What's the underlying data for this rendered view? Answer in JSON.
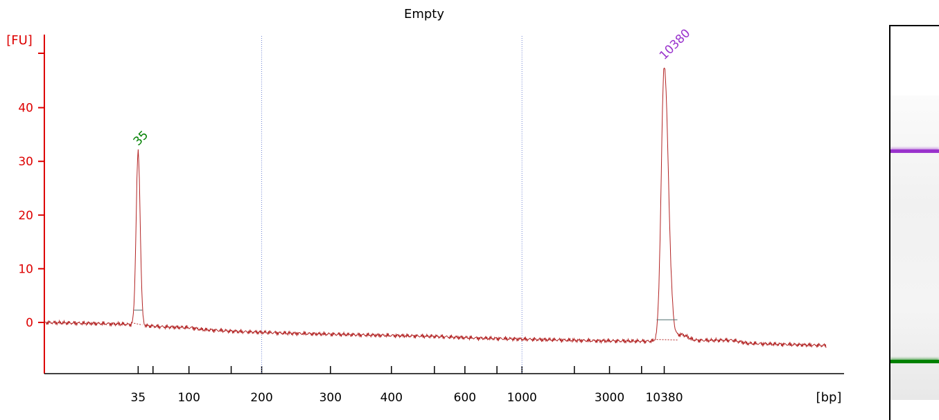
{
  "chart_data": {
    "type": "line",
    "title": "Empty",
    "ylabel": "[FU]",
    "xlabel": "[bp]",
    "ylim": [
      -10,
      50
    ],
    "y_ticks": [
      0,
      10,
      20,
      30,
      40
    ],
    "x_tick_labels": [
      "35",
      "100",
      "200",
      "300",
      "400",
      "600",
      "1000",
      "3000",
      "10380"
    ],
    "x_dotted_lines": [
      "200",
      "1000"
    ],
    "baseline": [
      [
        0,
        0.0
      ],
      [
        10,
        -0.3
      ],
      [
        15,
        -0.8
      ],
      [
        19,
        -1.0
      ],
      [
        20,
        -1.3
      ],
      [
        25,
        -1.7
      ],
      [
        31,
        -2.0
      ],
      [
        40,
        -2.3
      ],
      [
        50,
        -2.6
      ],
      [
        55,
        -2.9
      ],
      [
        61,
        -3.1
      ],
      [
        70,
        -3.4
      ],
      [
        77,
        -3.5
      ],
      [
        79,
        -3.4
      ],
      [
        88,
        -3.3
      ],
      [
        90,
        -3.9
      ],
      [
        100,
        -4.3
      ]
    ],
    "peaks": [
      {
        "label": "35",
        "color": "#008000",
        "x": 12.0,
        "height": 31.8
      },
      {
        "label": "10380",
        "color": "#9932cc",
        "x": 79.3,
        "height": 47.8
      }
    ],
    "gel_bands": [
      {
        "label": "10380",
        "color": "#9932cc"
      },
      {
        "label": "35",
        "color": "#008000"
      }
    ],
    "colors": {
      "axis": "#dd0000",
      "trace": "#b22222",
      "grid": "#6a7fd0",
      "text": "#000000"
    }
  }
}
